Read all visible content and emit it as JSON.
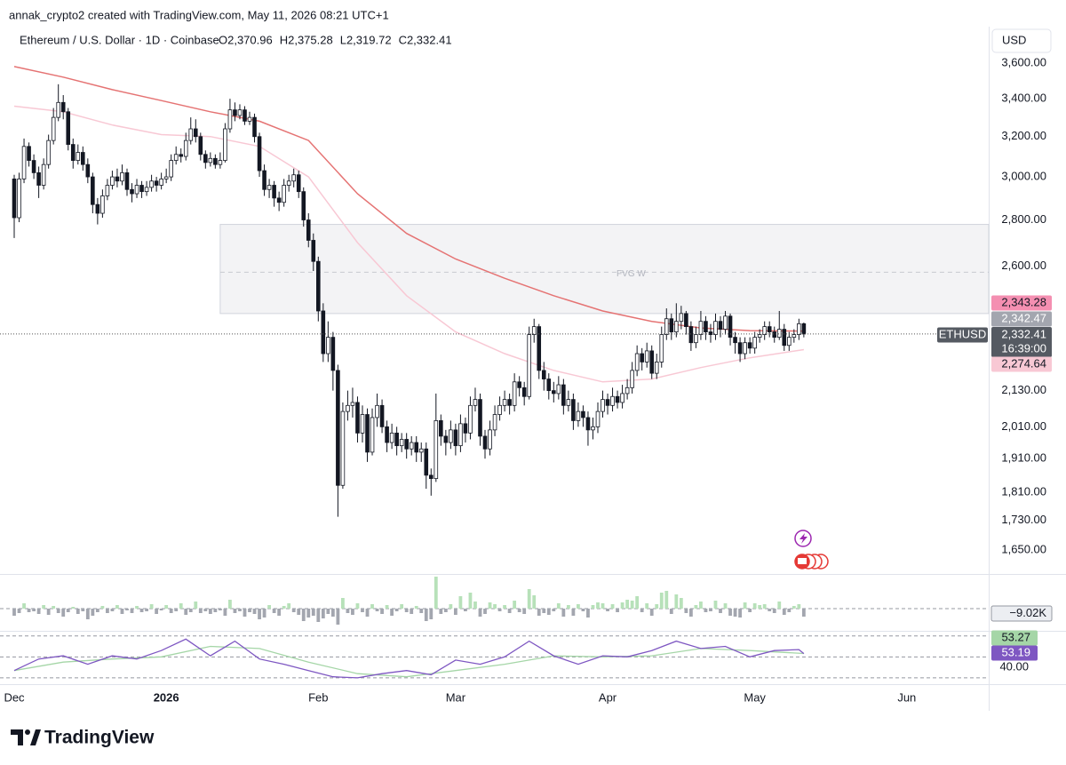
{
  "header": {
    "attribution": "annak_crypto2 created with TradingView.com, May 11, 2026 08:21 UTC+1"
  },
  "footer": {
    "logo": "TradingView"
  },
  "chart_data": [
    {
      "type": "candlestick",
      "title": "Ethereum / U.S. Dollar · 1D · Coinbase",
      "ohlc_header": [
        "O2,370.96",
        "H2,375.28",
        "L2,319.72",
        "C2,332.41"
      ],
      "currency": "USD",
      "symbol": "ETHUSD",
      "countdown": "16:39:00",
      "last_price_label": "2,332.41",
      "log_scale": true,
      "grid": false,
      "up_color": "#ffffff",
      "down_color": "#131722",
      "ylim": [
        1590,
        3683
      ],
      "xlim": [
        -2.9,
        198.7
      ],
      "yticks": [
        {
          "value": 3600,
          "label": "3,600.00"
        },
        {
          "value": 3400,
          "label": "3,400.00"
        },
        {
          "value": 3200,
          "label": "3,200.00"
        },
        {
          "value": 3000,
          "label": "3,000.00"
        },
        {
          "value": 2800,
          "label": "2,800.00"
        },
        {
          "value": 2600,
          "label": "2,600.00"
        },
        {
          "value": 2130,
          "label": "2,130.00"
        },
        {
          "value": 2010,
          "label": "2,010.00"
        },
        {
          "value": 1910,
          "label": "1,910.00"
        },
        {
          "value": 1810,
          "label": "1,810.00"
        },
        {
          "value": 1730,
          "label": "1,730.00"
        },
        {
          "value": 1650,
          "label": "1,650.00"
        }
      ],
      "xticks": [
        {
          "value": 0,
          "label": "Dec"
        },
        {
          "value": 31,
          "label": "2026"
        },
        {
          "value": 62,
          "label": "Feb"
        },
        {
          "value": 90,
          "label": "Mar"
        },
        {
          "value": 121,
          "label": "Apr"
        },
        {
          "value": 151,
          "label": "May"
        },
        {
          "value": 182,
          "label": "Jun"
        }
      ],
      "open": [
        2990,
        2810,
        2990,
        3150,
        3080,
        3020,
        2960,
        3060,
        3180,
        3300,
        3380,
        3330,
        3160,
        3080,
        3120,
        3060,
        3000,
        2870,
        2830,
        2910,
        2960,
        3000,
        2980,
        3020,
        2940,
        2920,
        2960,
        2930,
        2950,
        2980,
        2960,
        2990,
        3000,
        3080,
        3110,
        3100,
        3180,
        3240,
        3200,
        3110,
        3070,
        3090,
        3060,
        3080,
        3240,
        3340,
        3310,
        3340,
        3280,
        3300,
        3200,
        3030,
        2940,
        2960,
        2900,
        2880,
        2960,
        2980,
        3010,
        2930,
        2800,
        2710,
        2620,
        2420,
        2260,
        2320,
        2200,
        1830,
        2060,
        2080,
        2090,
        1990,
        2050,
        1930,
        2040,
        2080,
        2010,
        1960,
        1990,
        1950,
        1970,
        1940,
        1960,
        1930,
        1940,
        1860,
        1850,
        2030,
        1980,
        1960,
        2000,
        1950,
        2020,
        1990,
        2080,
        2100,
        1980,
        1940,
        2000,
        2050,
        2080,
        2100,
        2080,
        2160,
        2140,
        2110,
        2330,
        2360,
        2200,
        2170,
        2130,
        2120,
        2150,
        2080,
        2100,
        2030,
        2060,
        2040,
        2000,
        2010,
        2060,
        2100,
        2080,
        2110,
        2090,
        2120,
        2140,
        2200,
        2260,
        2230,
        2270,
        2190,
        2230,
        2330,
        2390,
        2340,
        2380,
        2410,
        2360,
        2300,
        2330,
        2380,
        2340,
        2330,
        2380,
        2350,
        2400,
        2320,
        2300,
        2260,
        2300,
        2280,
        2320,
        2330,
        2360,
        2340,
        2320,
        2350,
        2290,
        2320,
        2330,
        2370.96
      ],
      "high": [
        3010,
        3020,
        3190,
        3170,
        3110,
        3050,
        3090,
        3210,
        3350,
        3480,
        3420,
        3350,
        3190,
        3160,
        3150,
        3090,
        3020,
        2900,
        2940,
        2990,
        3030,
        3040,
        3060,
        3040,
        2970,
        2990,
        2980,
        2980,
        3010,
        3000,
        3020,
        3040,
        3110,
        3150,
        3140,
        3220,
        3300,
        3290,
        3220,
        3130,
        3120,
        3110,
        3120,
        3270,
        3400,
        3380,
        3370,
        3360,
        3330,
        3320,
        3220,
        3060,
        2990,
        2980,
        2930,
        2990,
        3010,
        3040,
        3030,
        2950,
        2830,
        2740,
        2640,
        2450,
        2380,
        2340,
        2220,
        2090,
        2130,
        2140,
        2110,
        2080,
        2070,
        2070,
        2120,
        2100,
        2030,
        2020,
        2010,
        1990,
        1990,
        1980,
        1980,
        1960,
        1960,
        1880,
        2120,
        2050,
        2000,
        2030,
        2020,
        2050,
        2040,
        2110,
        2140,
        2120,
        2000,
        2030,
        2080,
        2110,
        2130,
        2120,
        2190,
        2180,
        2160,
        2360,
        2390,
        2370,
        2230,
        2190,
        2160,
        2180,
        2170,
        2130,
        2120,
        2090,
        2080,
        2060,
        2040,
        2090,
        2130,
        2120,
        2140,
        2130,
        2150,
        2170,
        2230,
        2290,
        2280,
        2300,
        2290,
        2260,
        2360,
        2430,
        2410,
        2450,
        2440,
        2420,
        2380,
        2360,
        2420,
        2400,
        2370,
        2410,
        2400,
        2420,
        2410,
        2340,
        2320,
        2320,
        2320,
        2340,
        2350,
        2380,
        2380,
        2360,
        2420,
        2370,
        2340,
        2350,
        2390,
        2375.28
      ],
      "low": [
        2720,
        2790,
        2970,
        3050,
        2990,
        2900,
        2940,
        3040,
        3160,
        3280,
        3290,
        3130,
        3040,
        3060,
        3030,
        2970,
        2830,
        2780,
        2810,
        2890,
        2940,
        2950,
        2960,
        2910,
        2880,
        2900,
        2900,
        2910,
        2930,
        2930,
        2940,
        2970,
        2980,
        3060,
        3070,
        3080,
        3160,
        3170,
        3080,
        3040,
        3050,
        3040,
        3040,
        3070,
        3220,
        3280,
        3290,
        3260,
        3260,
        3170,
        3000,
        2910,
        2900,
        2860,
        2840,
        2860,
        2930,
        2950,
        2900,
        2770,
        2680,
        2580,
        2380,
        2230,
        2230,
        2130,
        1740,
        1820,
        2030,
        2040,
        1960,
        1960,
        1900,
        1920,
        2010,
        1990,
        1930,
        1940,
        1920,
        1930,
        1910,
        1920,
        1900,
        1900,
        1820,
        1800,
        1840,
        1950,
        1920,
        1940,
        1920,
        1930,
        1960,
        1970,
        2060,
        1950,
        1910,
        1920,
        1980,
        2030,
        2060,
        2050,
        2060,
        2110,
        2080,
        2100,
        2300,
        2170,
        2130,
        2100,
        2090,
        2100,
        2050,
        2060,
        2000,
        2010,
        2010,
        1950,
        1970,
        1990,
        2040,
        2050,
        2060,
        2070,
        2070,
        2100,
        2120,
        2180,
        2200,
        2210,
        2170,
        2170,
        2210,
        2310,
        2310,
        2320,
        2350,
        2330,
        2270,
        2280,
        2310,
        2310,
        2300,
        2310,
        2320,
        2330,
        2290,
        2260,
        2230,
        2240,
        2260,
        2260,
        2300,
        2310,
        2320,
        2300,
        2310,
        2270,
        2270,
        2300,
        2310,
        2319.72
      ],
      "close": [
        2810,
        2990,
        3150,
        3080,
        3020,
        2960,
        3060,
        3180,
        3300,
        3380,
        3330,
        3160,
        3080,
        3120,
        3060,
        3000,
        2870,
        2830,
        2910,
        2960,
        3000,
        2980,
        3020,
        2940,
        2920,
        2960,
        2930,
        2950,
        2980,
        2960,
        2990,
        3000,
        3080,
        3110,
        3100,
        3180,
        3240,
        3200,
        3110,
        3070,
        3090,
        3060,
        3080,
        3240,
        3340,
        3310,
        3340,
        3280,
        3300,
        3200,
        3030,
        2940,
        2960,
        2900,
        2880,
        2960,
        2980,
        3010,
        2930,
        2800,
        2710,
        2620,
        2420,
        2260,
        2320,
        2200,
        1830,
        2060,
        2080,
        2090,
        1990,
        2050,
        1930,
        2040,
        2080,
        2010,
        1960,
        1990,
        1950,
        1970,
        1940,
        1960,
        1930,
        1940,
        1860,
        1850,
        2030,
        1980,
        1960,
        2000,
        1950,
        2020,
        1990,
        2080,
        2100,
        1980,
        1940,
        2000,
        2050,
        2080,
        2100,
        2080,
        2160,
        2140,
        2110,
        2330,
        2360,
        2200,
        2170,
        2130,
        2120,
        2150,
        2080,
        2100,
        2030,
        2060,
        2040,
        2000,
        2010,
        2060,
        2100,
        2080,
        2110,
        2090,
        2120,
        2140,
        2200,
        2260,
        2230,
        2270,
        2190,
        2230,
        2330,
        2390,
        2340,
        2380,
        2410,
        2360,
        2300,
        2330,
        2380,
        2340,
        2330,
        2380,
        2350,
        2400,
        2320,
        2300,
        2260,
        2300,
        2280,
        2320,
        2330,
        2360,
        2340,
        2320,
        2350,
        2290,
        2320,
        2330,
        2370.96,
        2332.41
      ],
      "moving_averages": [
        {
          "color": "#e57373",
          "x": [
            0,
            10,
            20,
            30,
            40,
            50,
            60,
            70,
            80,
            90,
            100,
            110,
            120,
            130,
            140,
            150,
            161
          ],
          "values": [
            3580,
            3520,
            3450,
            3390,
            3330,
            3280,
            3180,
            2920,
            2740,
            2630,
            2550,
            2480,
            2420,
            2380,
            2355,
            2345,
            2343.28
          ]
        },
        {
          "color": "#f8c8d4",
          "x": [
            0,
            10,
            20,
            30,
            40,
            50,
            60,
            70,
            80,
            90,
            100,
            110,
            120,
            130,
            140,
            150,
            161
          ],
          "values": [
            3360,
            3330,
            3260,
            3210,
            3200,
            3150,
            3000,
            2700,
            2480,
            2340,
            2260,
            2200,
            2160,
            2170,
            2210,
            2245,
            2274.64
          ]
        }
      ],
      "price_labels": [
        {
          "value": 2343.28,
          "label": "2,343.28",
          "color": "#f48fb1"
        },
        {
          "value": 2342.47,
          "label": "2,342.47",
          "color": "#a3a6af"
        },
        {
          "value": 2274.64,
          "label": "2,274.64",
          "color": "#f8c8d4"
        }
      ],
      "zone": {
        "label": "FVG W",
        "top": 2780,
        "bottom": 2410,
        "mid": 2575,
        "x_start": 42
      }
    },
    {
      "type": "histogram",
      "xlim": [
        -2.9,
        198.7
      ],
      "ylim": [
        -24,
        37
      ],
      "up_color": "#b7e1b9",
      "down_color": "#a3a6af",
      "last_label": "−9.02K",
      "values": [
        -8,
        -5,
        6,
        -4,
        -3,
        -6,
        4,
        -7,
        3,
        -5,
        -9,
        -4,
        2,
        -6,
        -3,
        -12,
        -8,
        -4,
        3,
        -5,
        -3,
        4,
        -6,
        -2,
        -5,
        3,
        -4,
        -3,
        5,
        -6,
        -2,
        4,
        -5,
        -3,
        6,
        -7,
        -4,
        8,
        -5,
        -3,
        -6,
        -4,
        -2,
        -8,
        10,
        -5,
        -3,
        -9,
        -4,
        -6,
        -12,
        -10,
        4,
        -5,
        -8,
        3,
        6,
        -4,
        -7,
        -14,
        -10,
        -8,
        -15,
        -11,
        -6,
        -9,
        -18,
        12,
        -5,
        -7,
        6,
        -4,
        -9,
        5,
        -3,
        -6,
        4,
        -8,
        -3,
        5,
        -4,
        -6,
        3,
        -5,
        -14,
        -12,
        36,
        -6,
        -4,
        5,
        -7,
        14,
        -3,
        18,
        8,
        -9,
        -6,
        7,
        5,
        -3,
        4,
        -5,
        9,
        -4,
        -6,
        22,
        15,
        -8,
        -5,
        -7,
        -3,
        6,
        -9,
        4,
        -8,
        5,
        -3,
        -10,
        4,
        7,
        6,
        -3,
        5,
        -4,
        7,
        10,
        9,
        14,
        -4,
        6,
        -8,
        5,
        18,
        20,
        -6,
        16,
        12,
        -5,
        -9,
        4,
        8,
        -4,
        -3,
        9,
        -5,
        6,
        -8,
        -9,
        -10,
        7,
        -4,
        6,
        4,
        5,
        -3,
        -5,
        8,
        -7,
        -4,
        3,
        5,
        -9.02
      ]
    },
    {
      "type": "line",
      "xlim": [
        -2.9,
        198.7
      ],
      "ylim": [
        24,
        74
      ],
      "yticks": [
        {
          "value": 40,
          "label": "40.00"
        }
      ],
      "levels": [
        70,
        50,
        30
      ],
      "series": [
        {
          "color": "#7e57c2",
          "label": "53.19",
          "x": [
            0,
            5,
            10,
            15,
            20,
            25,
            30,
            35,
            40,
            45,
            50,
            55,
            60,
            65,
            70,
            75,
            80,
            85,
            90,
            95,
            100,
            105,
            110,
            115,
            120,
            125,
            130,
            135,
            140,
            145,
            150,
            155,
            160,
            161
          ],
          "values": [
            37,
            48,
            51,
            43,
            51,
            48,
            56,
            67,
            51,
            65,
            48,
            43,
            37,
            31,
            30,
            34,
            37,
            33,
            47,
            43,
            50,
            65,
            51,
            43,
            51,
            50,
            56,
            65,
            58,
            60,
            50,
            56,
            57,
            53.19
          ]
        },
        {
          "color": "#a5d6a7",
          "label": "53.27",
          "x": [
            0,
            10,
            20,
            30,
            40,
            50,
            60,
            70,
            80,
            90,
            100,
            110,
            120,
            130,
            140,
            150,
            161
          ],
          "values": [
            37,
            45,
            48,
            50,
            60,
            58,
            45,
            34,
            31,
            37,
            43,
            51,
            50,
            51,
            58,
            56,
            53.27
          ]
        }
      ]
    }
  ]
}
